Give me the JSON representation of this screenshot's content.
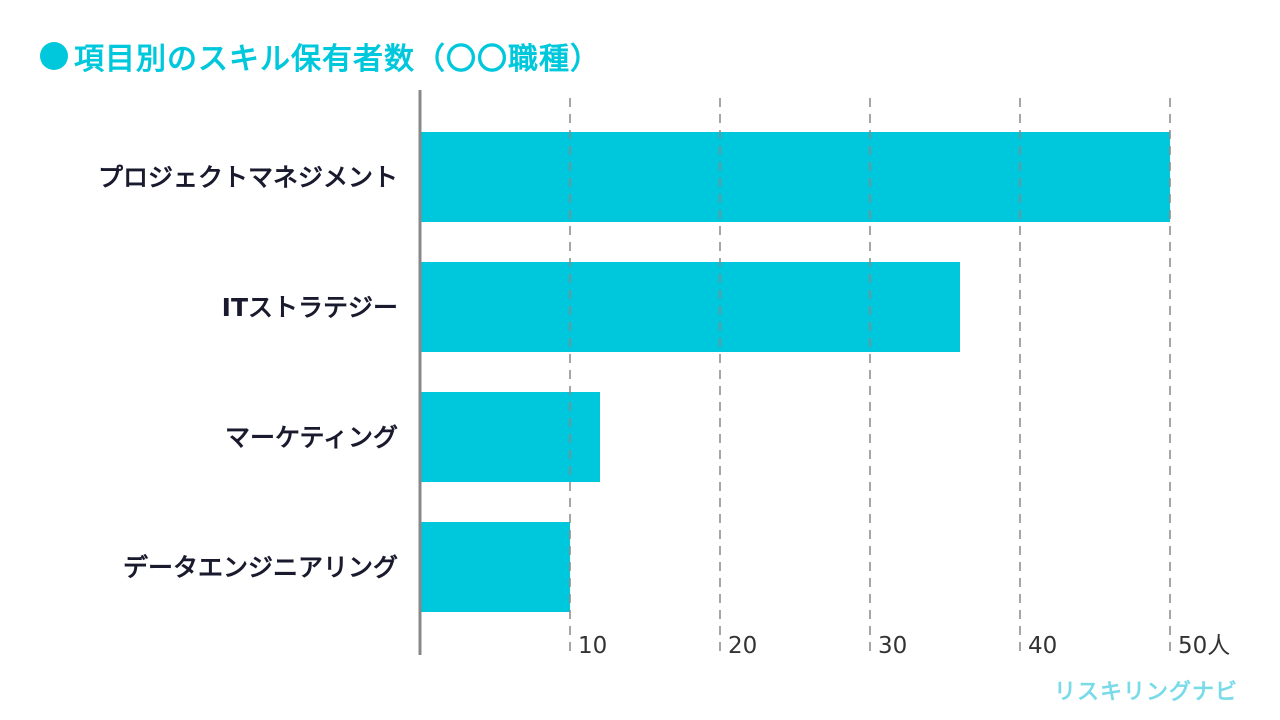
{
  "title": "項目別のスキル保有者数（〇〇職種）",
  "brand": "リスキリングナビ",
  "colors": {
    "accent": "#00c8dc",
    "grid": "#888888",
    "axis": "#888888"
  },
  "chart_data": {
    "type": "bar",
    "orientation": "horizontal",
    "categories": [
      "プロジェクトマネジメント",
      "ITストラテジー",
      "マーケティング",
      "データエンジニアリング"
    ],
    "values": [
      50,
      36,
      12,
      10
    ],
    "xlim": [
      0,
      50
    ],
    "xticks": [
      10,
      20,
      30,
      40,
      50
    ],
    "xtick_labels": [
      "10",
      "20",
      "30",
      "40",
      "50人"
    ],
    "grid": "vertical-dashed",
    "legend": "none"
  }
}
